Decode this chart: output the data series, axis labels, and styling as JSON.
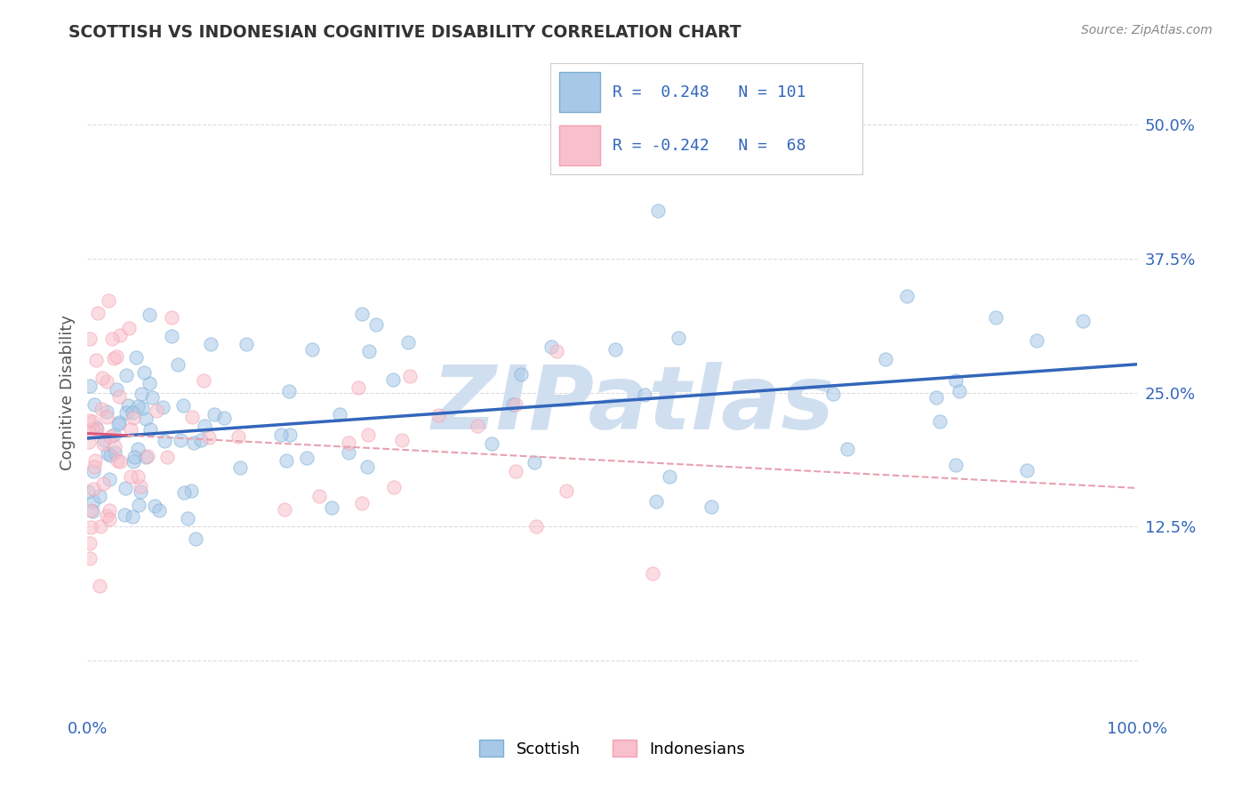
{
  "title": "SCOTTISH VS INDONESIAN COGNITIVE DISABILITY CORRELATION CHART",
  "source": "Source: ZipAtlas.com",
  "ylabel": "Cognitive Disability",
  "xlim": [
    0.0,
    100.0
  ],
  "ylim": [
    -5.0,
    55.0
  ],
  "yticks": [
    0.0,
    12.5,
    25.0,
    37.5,
    50.0
  ],
  "ytick_labels": [
    "",
    "12.5%",
    "25.0%",
    "37.5%",
    "50.0%"
  ],
  "xtick_labels": [
    "0.0%",
    "100.0%"
  ],
  "xticks": [
    0,
    100
  ],
  "legend_label1": "Scottish",
  "legend_label2": "Indonesians",
  "blue_color": "#7BAFD4",
  "pink_color": "#F4A0B0",
  "blue_face_color": "#A8C8E8",
  "pink_face_color": "#F8C0CC",
  "blue_line_color": "#3366BB",
  "pink_line_color": "#DD5577",
  "pink_dash_color": "#E8A0B0",
  "watermark": "ZIPatlas",
  "watermark_color": "#D0DFF0",
  "background_color": "#FFFFFF",
  "grid_color": "#CCCCCC",
  "title_color": "#333333",
  "label_color": "#3366BB",
  "blue_r": 0.248,
  "blue_n": 101,
  "pink_r": -0.242,
  "pink_n": 68
}
